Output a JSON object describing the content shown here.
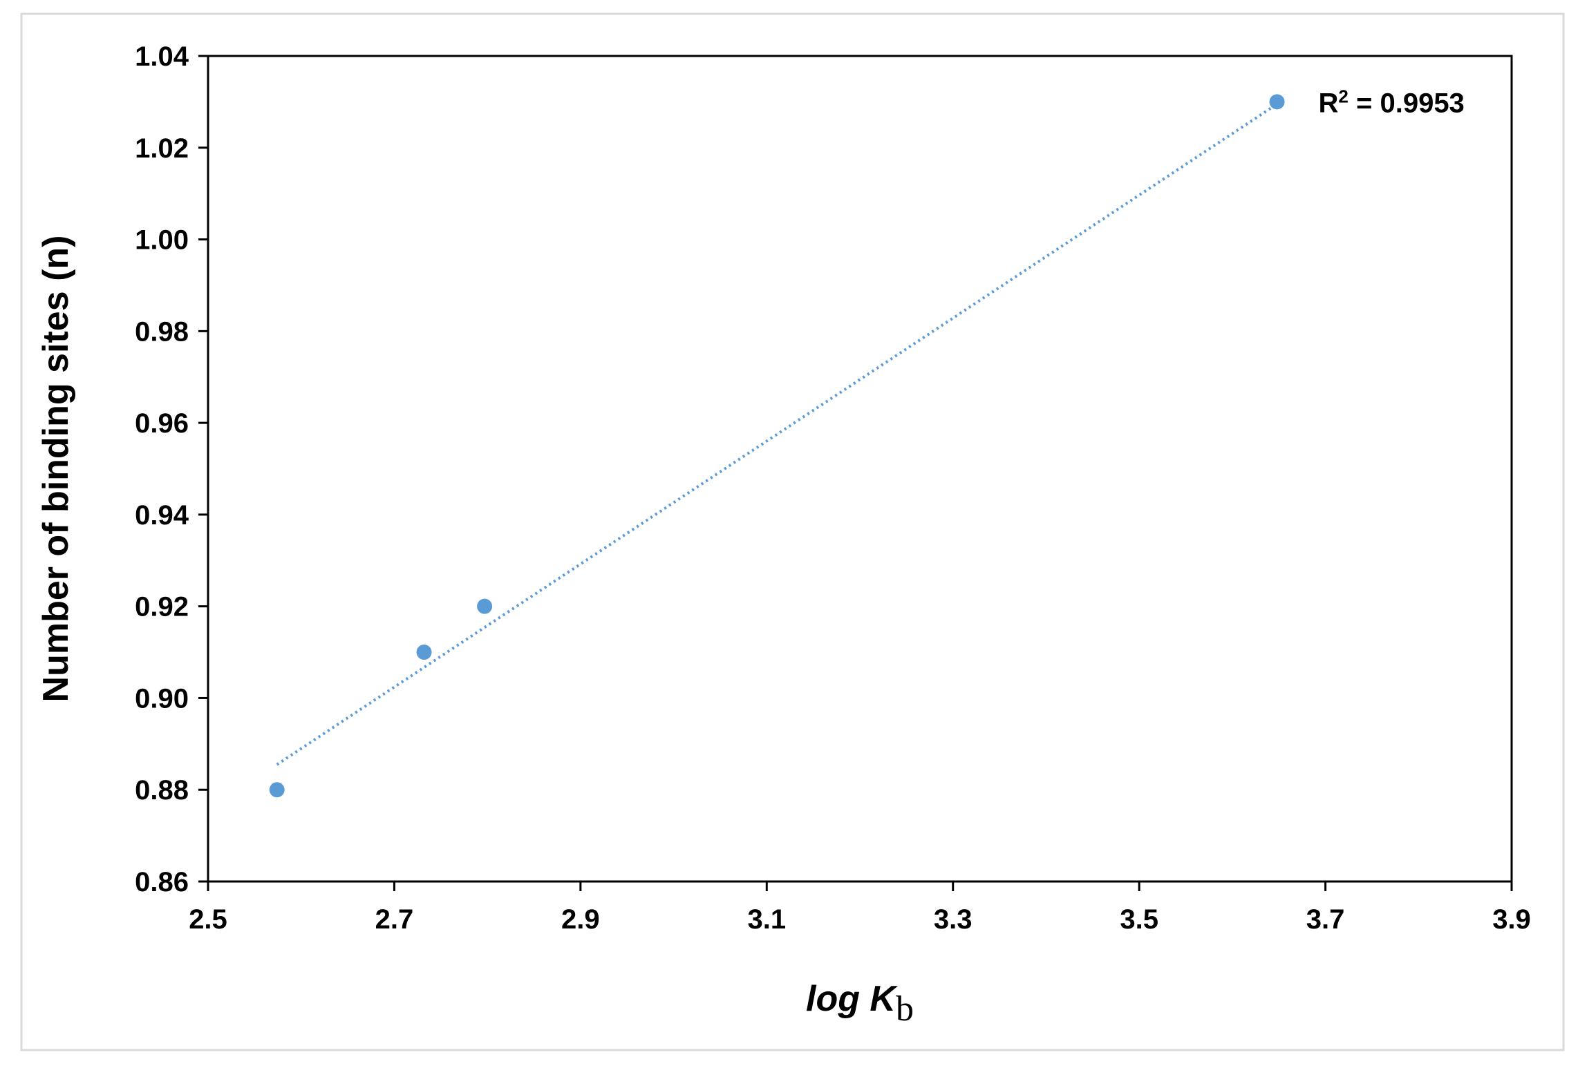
{
  "chart_data": {
    "type": "scatter",
    "title": "",
    "xlabel": {
      "main": "log K",
      "subscript": "b"
    },
    "ylabel": "Number of binding sites (n)",
    "xlim": [
      2.5,
      3.9
    ],
    "ylim": [
      0.86,
      1.04
    ],
    "x_ticks": [
      "2.5",
      "2.7",
      "2.9",
      "3.1",
      "3.3",
      "3.5",
      "3.7",
      "3.9"
    ],
    "y_ticks": [
      "0.86",
      "0.88",
      "0.90",
      "0.92",
      "0.94",
      "0.96",
      "0.98",
      "1.00",
      "1.02",
      "1.04"
    ],
    "grid": false,
    "legend": "none",
    "series": [
      {
        "points": [
          {
            "x": 2.574,
            "y": 0.88
          },
          {
            "x": 2.732,
            "y": 0.91
          },
          {
            "x": 2.797,
            "y": 0.92
          },
          {
            "x": 3.648,
            "y": 1.03
          }
        ],
        "color": "#5b9bd5",
        "marker": "circle"
      }
    ],
    "trendline": {
      "type": "linear",
      "style": "dotted",
      "color": "#5b9bd5",
      "x_range": [
        2.574,
        3.648
      ],
      "y_range": [
        0.8855,
        1.0295
      ]
    },
    "annotation": {
      "base": "R",
      "superscript": "2",
      "rest": " = 0.9953"
    },
    "colors": {
      "axis": "#000000",
      "frame": "#d9d9d9"
    }
  }
}
